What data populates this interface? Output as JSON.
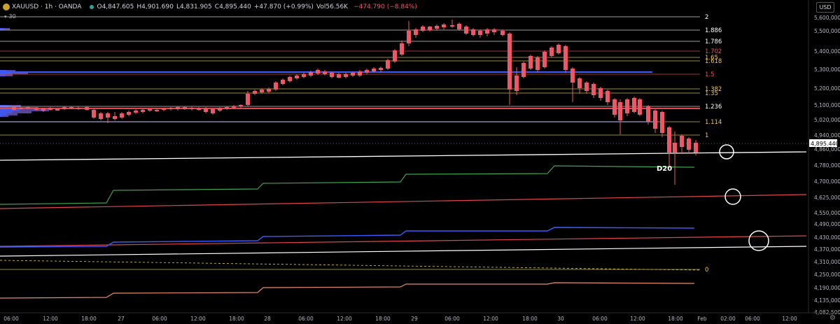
{
  "header": {
    "symbol": "XAUUSD · 1h · OANDA",
    "open": "O4,847.605",
    "high": "H4,901.690",
    "low": "L4,831.905",
    "close": "C4,895.440",
    "change": "+47.870 (+0.99%)",
    "volume": "Vol56.56K",
    "extra": "−474.790 (−8.84%)"
  },
  "indicator_toggle": {
    "label": "30"
  },
  "currency_button": {
    "label": "USD"
  },
  "price_axis": {
    "ticks": [
      "5,600,000",
      "5,500,000",
      "5,400,000",
      "5,300,000",
      "5,200,000",
      "5,100,000",
      "5,020,000",
      "4,940,000",
      "4,860,000",
      "4,780,000",
      "4,700,000",
      "4,625,000",
      "4,550,000",
      "4,490,000",
      "4,430,000",
      "4,370,000",
      "4,310,000",
      "4,250,000",
      "4,190,000",
      "4,135,000",
      "4,082,500"
    ],
    "current_price": "4,895.440"
  },
  "time_axis": {
    "labels": [
      "06:00",
      "12:00",
      "18:00",
      "27",
      "06:00",
      "12:00",
      "18:00",
      "28",
      "06:00",
      "12:00",
      "18:00",
      "29",
      "06:00",
      "12:00",
      "18:00",
      "30",
      "06:00",
      "12:00",
      "18:00",
      "Feb",
      "02:00",
      "06:00",
      "12:00"
    ]
  },
  "fib_levels": [
    {
      "label": "2",
      "color": "#ffffff"
    },
    {
      "label": "1.886",
      "color": "#ffffff"
    },
    {
      "label": "1.786",
      "color": "#ffffff"
    },
    {
      "label": "1.702",
      "color": "#f0524f"
    },
    {
      "label": "1.65",
      "color": "#f5c542"
    },
    {
      "label": "1.618",
      "color": "#f5c542"
    },
    {
      "label": "1.5",
      "color": "#f0524f"
    },
    {
      "label": "1.382",
      "color": "#f5c542"
    },
    {
      "label": "1.35",
      "color": "#f5c542"
    },
    {
      "label": "1.236",
      "color": "#ffffff"
    },
    {
      "label": "1.114",
      "color": "#f5c542"
    },
    {
      "label": "1",
      "color": "#f5c542"
    },
    {
      "label": "0",
      "color": "#f5c542"
    }
  ],
  "annotations": {
    "d20_label": "D20"
  },
  "colors": {
    "up": "#ffffff",
    "down": "#f05766",
    "background": "#000000"
  }
}
